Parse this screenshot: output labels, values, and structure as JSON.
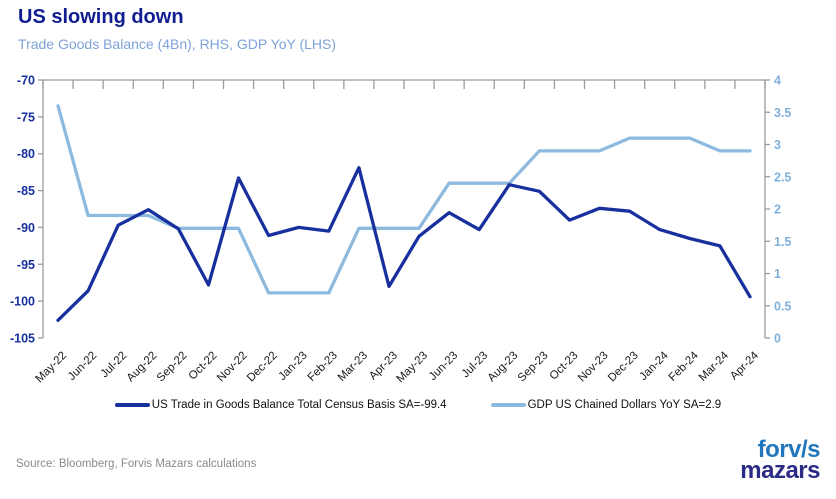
{
  "header": {
    "title": "US slowing down",
    "subtitle": "Trade Goods Balance (4Bn), RHS, GDP YoY (LHS)"
  },
  "chart_data": {
    "type": "line",
    "title": "US slowing down",
    "subtitle": "Trade Goods Balance (4Bn), RHS, GDP YoY (LHS)",
    "categories": [
      "May-22",
      "Jun-22",
      "Jul-22",
      "Aug-22",
      "Sep-22",
      "Oct-22",
      "Nov-22",
      "Dec-22",
      "Jan-23",
      "Feb-23",
      "Mar-23",
      "Apr-23",
      "May-23",
      "Jun-23",
      "Jul-23",
      "Aug-23",
      "Sep-23",
      "Oct-23",
      "Nov-23",
      "Dec-23",
      "Jan-24",
      "Feb-24",
      "Mar-24",
      "Apr-24"
    ],
    "series": [
      {
        "key": "trade-balance",
        "name": "US Trade in Goods Balance Total Census Basis SA=-99.4",
        "axis": "left",
        "color": "#17309e",
        "values": [
          -102.6,
          -98.6,
          -89.7,
          -87.6,
          -90.2,
          -97.8,
          -83.3,
          -91.1,
          -90.0,
          -90.5,
          -81.9,
          -98.0,
          -91.2,
          -88.0,
          -90.3,
          -84.2,
          -85.1,
          -89.0,
          -87.4,
          -87.8,
          -90.3,
          -91.5,
          -92.5,
          -99.4
        ]
      },
      {
        "key": "gdp",
        "name": "GDP US Chained Dollars YoY SA=2.9",
        "axis": "right",
        "color": "#8dbade",
        "values": [
          3.6,
          1.9,
          1.9,
          1.9,
          1.7,
          1.7,
          1.7,
          0.7,
          0.7,
          0.7,
          1.7,
          1.7,
          1.7,
          2.4,
          2.4,
          2.4,
          2.9,
          2.9,
          2.9,
          3.1,
          3.1,
          3.1,
          2.9,
          2.9
        ]
      }
    ],
    "left_axis": {
      "min": -105,
      "max": -70,
      "step": 5,
      "ticks": [
        "-70",
        "-75",
        "-80",
        "-85",
        "-90",
        "-95",
        "-100",
        "-105"
      ],
      "label_color": "#17309e"
    },
    "right_axis": {
      "min": 0,
      "max": 4,
      "step": 0.5,
      "ticks": [
        "4",
        "3.5",
        "3",
        "2.5",
        "2",
        "1.5",
        "1",
        "0.5",
        "0"
      ],
      "label_color": "#7eb0dc"
    },
    "grid": false,
    "legend_position": "bottom",
    "axis_line_color": "#9b9b9b",
    "x_label_color": "#1a1a1a"
  },
  "legend": {
    "items": [
      {
        "label": "US Trade in Goods Balance Total Census Basis SA=-99.4",
        "color": "#17309e"
      },
      {
        "label": "GDP US Chained Dollars YoY SA=2.9",
        "color": "#8dbade"
      }
    ]
  },
  "footer": {
    "source": "Source: Bloomberg, Forvis Mazars calculations",
    "logo": {
      "line1": "forv/s",
      "line2": "mazars",
      "line1_color": "#2176bc",
      "line2_color": "#2a2b84"
    }
  }
}
